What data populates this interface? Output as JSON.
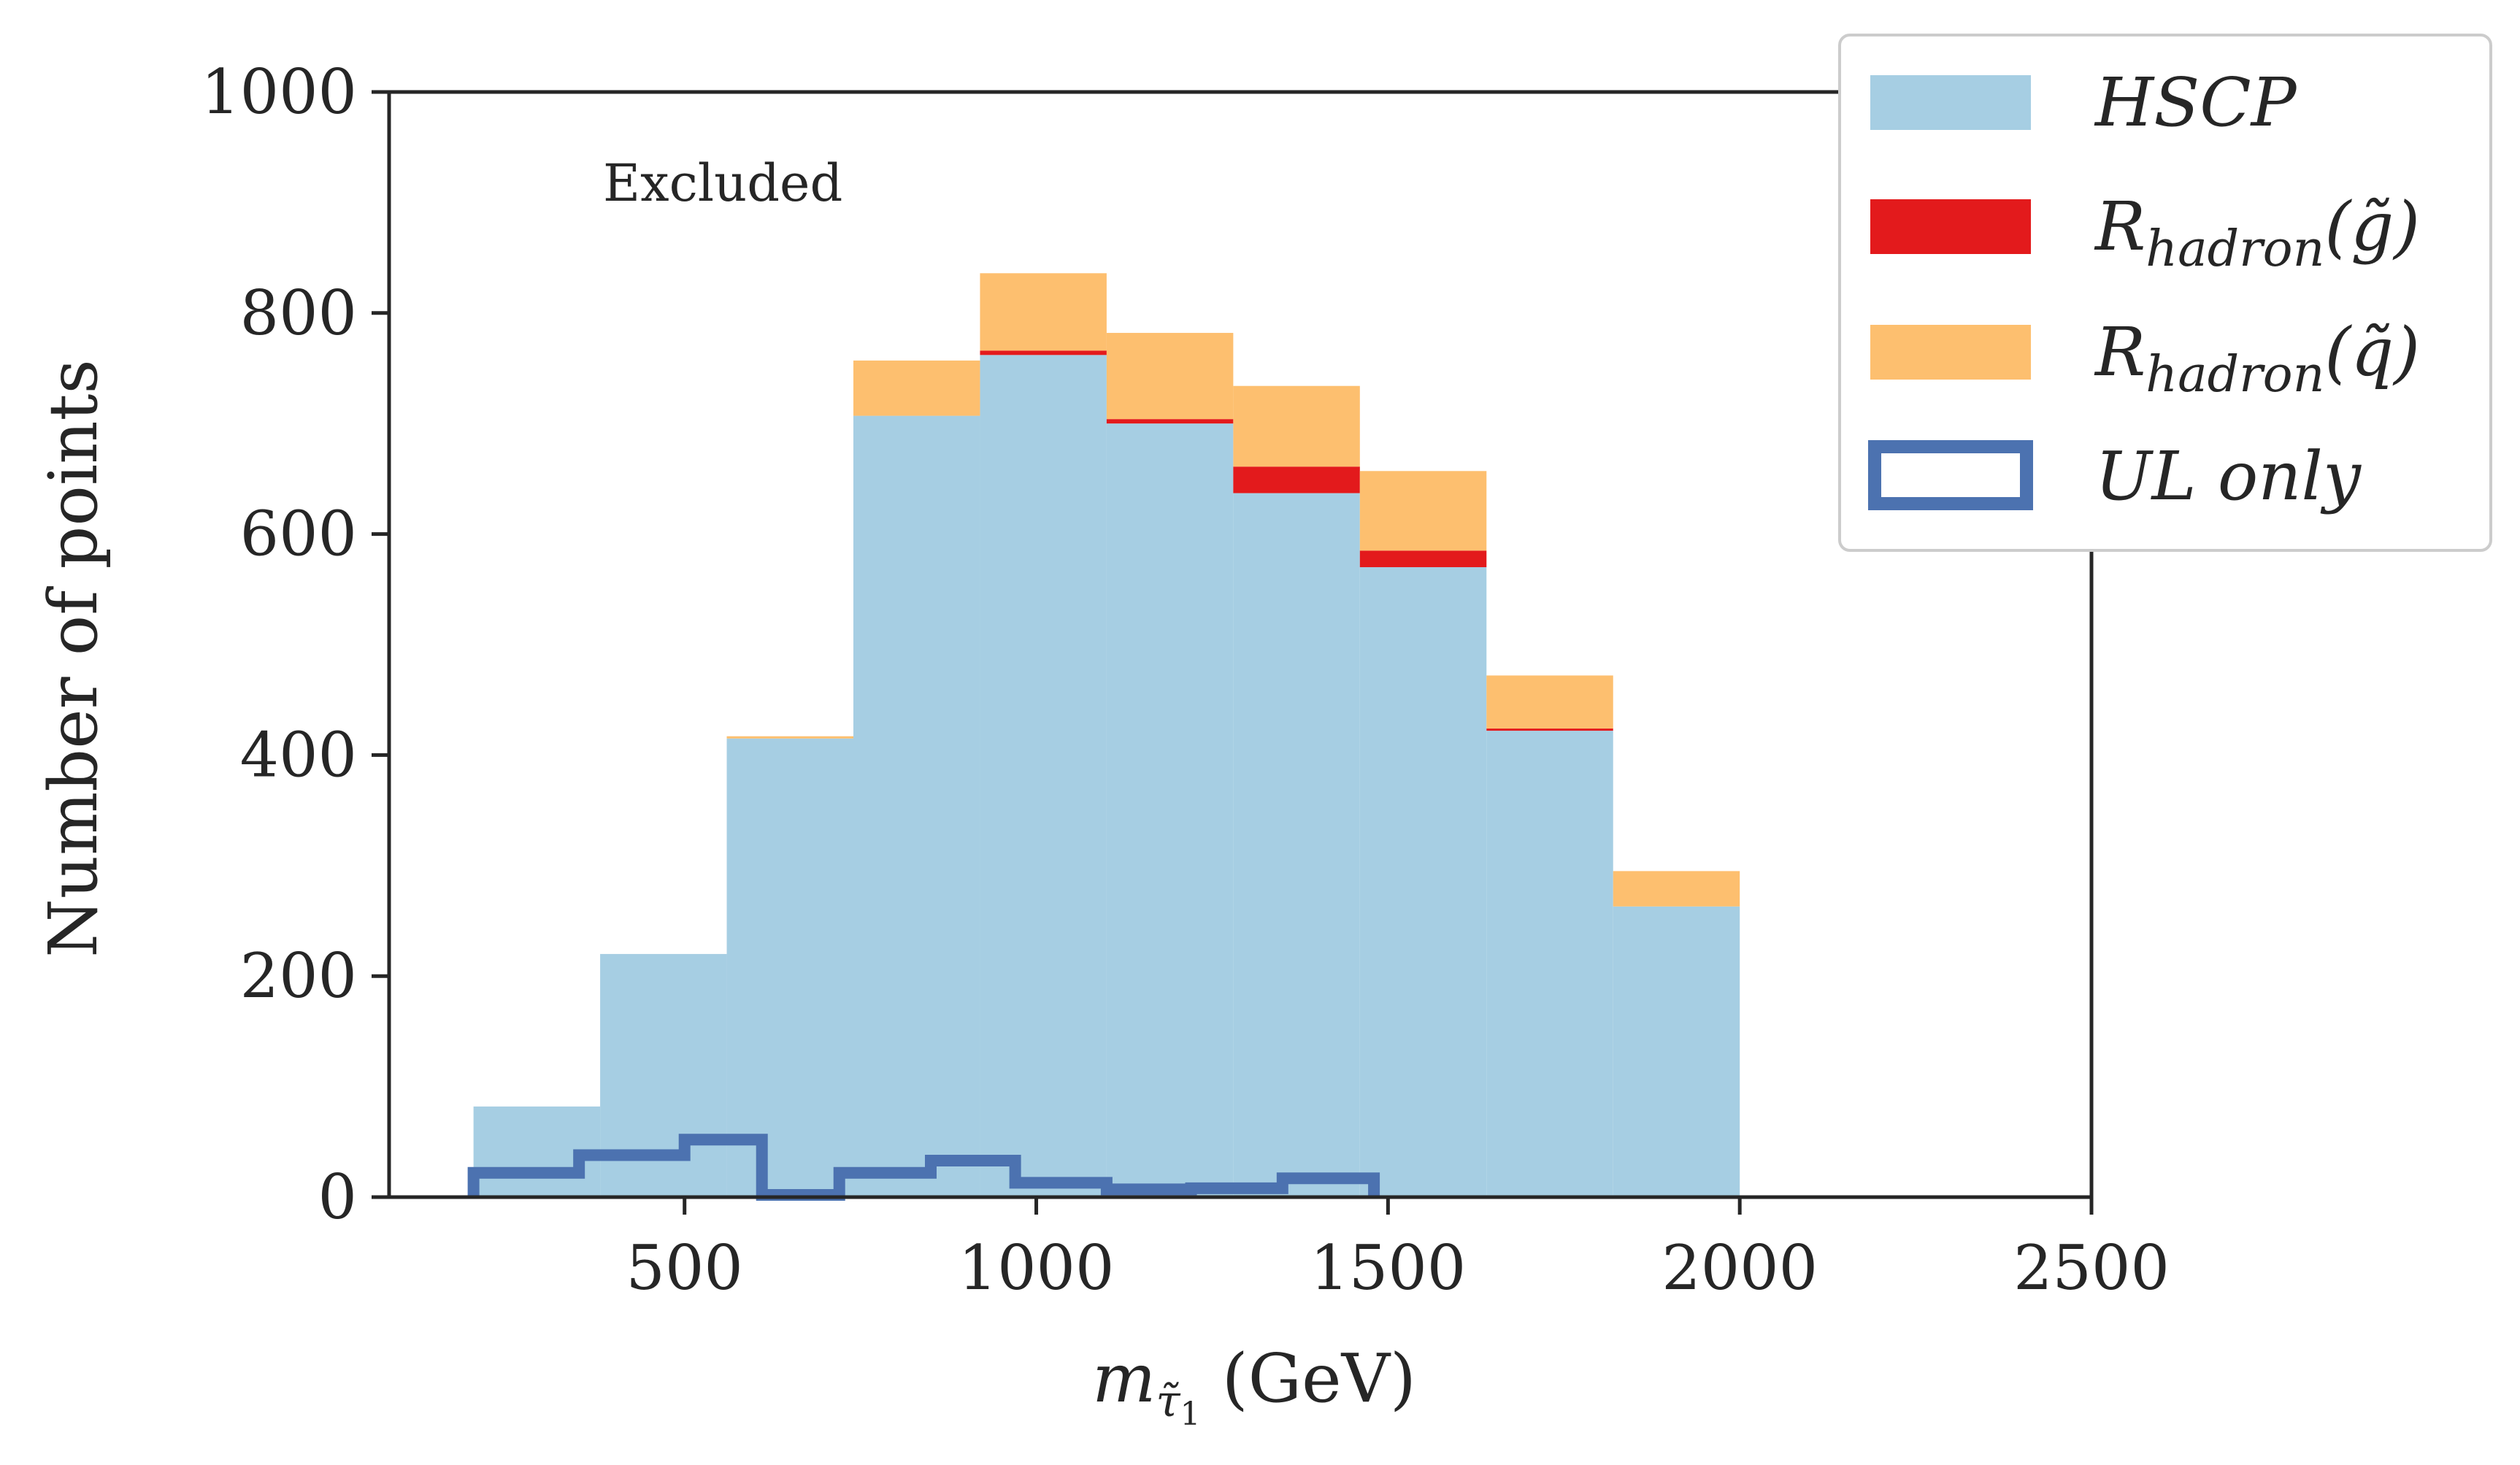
{
  "chart_data": {
    "type": "bar",
    "subtype": "stacked-step-histogram",
    "xlabel": "m_τ̃1 (GeV)",
    "ylabel": "Number of points",
    "xlim": [
      80,
      2500
    ],
    "ylim": [
      0,
      1000
    ],
    "x_ticks": [
      500,
      1000,
      1500,
      2000,
      2500
    ],
    "y_ticks": [
      0,
      200,
      400,
      600,
      800,
      1000
    ],
    "annotation": "Excluded",
    "legend_position": "upper-right-outside",
    "grid": false,
    "bins": [
      [
        200,
        380
      ],
      [
        380,
        560
      ],
      [
        560,
        740
      ],
      [
        740,
        920
      ],
      [
        920,
        1100
      ],
      [
        1100,
        1280
      ],
      [
        1280,
        1460
      ],
      [
        1460,
        1640
      ],
      [
        1640,
        1820
      ],
      [
        1820,
        2000
      ]
    ],
    "series": [
      {
        "name": "HSCP",
        "style": "filled",
        "color": "#a6cee3",
        "values": [
          82,
          220,
          415,
          707,
          762,
          700,
          637,
          570,
          422,
          263
        ]
      },
      {
        "name": "R_hadron(g̃)",
        "style": "filled",
        "color": "#e31a1c",
        "values": [
          0,
          0,
          0,
          0,
          4,
          4,
          24,
          15,
          2,
          0
        ]
      },
      {
        "name": "R_hadron(q̃)",
        "style": "filled",
        "color": "#fdbf6f",
        "values": [
          0,
          0,
          2,
          50,
          70,
          78,
          73,
          72,
          48,
          32
        ]
      },
      {
        "name": "UL only",
        "style": "step-outline",
        "color": "#4c72b0",
        "bins": [
          [
            200,
            350
          ],
          [
            350,
            500
          ],
          [
            500,
            610
          ],
          [
            610,
            720
          ],
          [
            720,
            850
          ],
          [
            850,
            970
          ],
          [
            970,
            1100
          ],
          [
            1100,
            1220
          ],
          [
            1220,
            1350
          ],
          [
            1350,
            1480
          ]
        ],
        "values": [
          22,
          38,
          52,
          2,
          22,
          33,
          13,
          7,
          8,
          17
        ]
      }
    ],
    "legend": {
      "items": [
        {
          "label_main": "HSCP",
          "label_sub": "",
          "label_tail": "",
          "color": "#a6cee3",
          "style": "filled"
        },
        {
          "label_main": "R",
          "label_sub": "hadron",
          "label_tail": "(g̃)",
          "color": "#e31a1c",
          "style": "filled"
        },
        {
          "label_main": "R",
          "label_sub": "hadron",
          "label_tail": "(q̃)",
          "color": "#fdbf6f",
          "style": "filled"
        },
        {
          "label_main": "UL only",
          "label_sub": "",
          "label_tail": "",
          "color": "#4c72b0",
          "style": "outline"
        }
      ]
    },
    "xlabel_parts": {
      "m": "m",
      "sub": "τ̃",
      "subsub": "1",
      "rest": " (GeV)"
    }
  }
}
